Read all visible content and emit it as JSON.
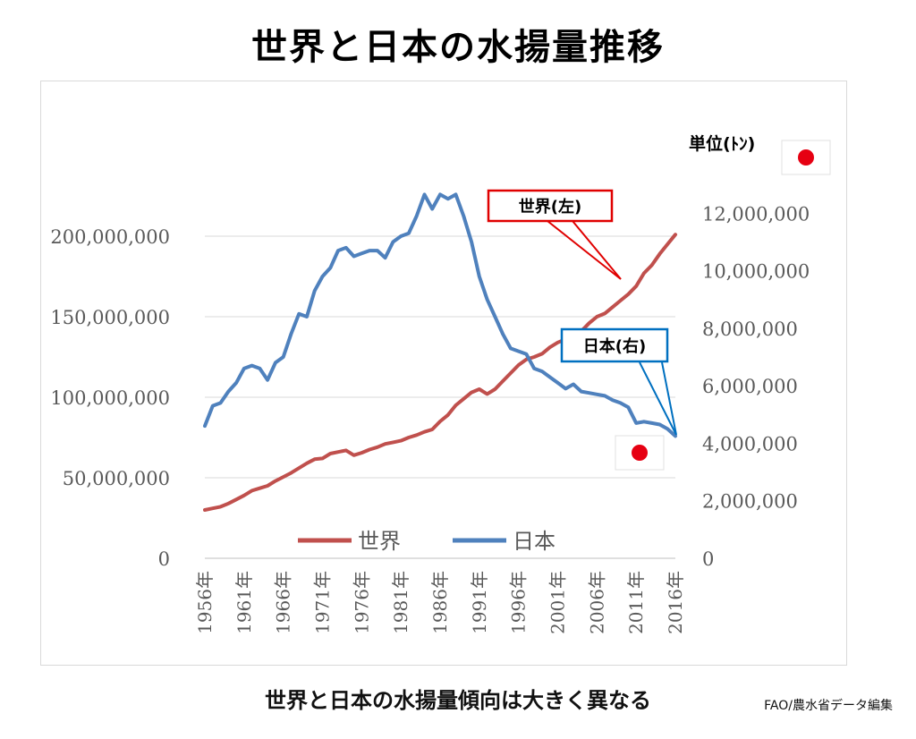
{
  "title": "世界と日本の水揚量推移",
  "caption": "世界と日本の水揚量傾向は大きく異なる",
  "source": "FAO/農水省データ編集",
  "unit_label": "単位(ﾄﾝ)",
  "callouts": {
    "world": "世界(左)",
    "japan": "日本(右)"
  },
  "colors": {
    "world": "#c0504d",
    "japan": "#4f81bd",
    "world_callout_border": "#e00000",
    "japan_callout_border": "#0070c0",
    "flag_red": "#e60012"
  },
  "chart_data": {
    "type": "line",
    "left_axis": {
      "range": [
        0,
        250000000
      ],
      "ticks": [
        0,
        50000000,
        100000000,
        150000000,
        200000000
      ],
      "tick_labels": [
        "0",
        "50,000,000",
        "100,000,000",
        "150,000,000",
        "200,000,000"
      ]
    },
    "right_axis": {
      "range": [
        0,
        14000000
      ],
      "ticks": [
        0,
        2000000,
        4000000,
        6000000,
        8000000,
        10000000,
        12000000
      ],
      "tick_labels": [
        "0",
        "2,000,000",
        "4,000,000",
        "6,000,000",
        "8,000,000",
        "10,000,000",
        "12,000,000"
      ]
    },
    "x_tick_labels": [
      "1956年",
      "1961年",
      "1966年",
      "1971年",
      "1976年",
      "1981年",
      "1986年",
      "1991年",
      "1996年",
      "2001年",
      "2006年",
      "2011年",
      "2016年"
    ],
    "x_ticks": [
      1956,
      1961,
      1966,
      1971,
      1976,
      1981,
      1986,
      1991,
      1996,
      2001,
      2006,
      2011,
      2016
    ],
    "x_range": [
      1956,
      2016
    ],
    "legend_position": "bottom",
    "grid": true,
    "series": [
      {
        "name": "世界",
        "axis": "left",
        "points": [
          [
            1956,
            30000000
          ],
          [
            1957,
            31000000
          ],
          [
            1958,
            32000000
          ],
          [
            1959,
            34000000
          ],
          [
            1960,
            36500000
          ],
          [
            1961,
            39000000
          ],
          [
            1962,
            42000000
          ],
          [
            1963,
            43500000
          ],
          [
            1964,
            45000000
          ],
          [
            1965,
            48000000
          ],
          [
            1966,
            50500000
          ],
          [
            1967,
            53000000
          ],
          [
            1968,
            56000000
          ],
          [
            1969,
            59000000
          ],
          [
            1970,
            61500000
          ],
          [
            1971,
            62000000
          ],
          [
            1972,
            65000000
          ],
          [
            1973,
            66000000
          ],
          [
            1974,
            67000000
          ],
          [
            1975,
            64000000
          ],
          [
            1976,
            65500000
          ],
          [
            1977,
            67500000
          ],
          [
            1978,
            69000000
          ],
          [
            1979,
            71000000
          ],
          [
            1980,
            72000000
          ],
          [
            1981,
            73000000
          ],
          [
            1982,
            75000000
          ],
          [
            1983,
            76500000
          ],
          [
            1984,
            78500000
          ],
          [
            1985,
            80000000
          ],
          [
            1986,
            85000000
          ],
          [
            1987,
            89000000
          ],
          [
            1988,
            95000000
          ],
          [
            1989,
            99000000
          ],
          [
            1990,
            103000000
          ],
          [
            1991,
            105000000
          ],
          [
            1992,
            102000000
          ],
          [
            1993,
            105000000
          ],
          [
            1994,
            110000000
          ],
          [
            1995,
            115000000
          ],
          [
            1996,
            120000000
          ],
          [
            1997,
            123500000
          ],
          [
            1998,
            125000000
          ],
          [
            1999,
            127000000
          ],
          [
            2000,
            131000000
          ],
          [
            2001,
            134000000
          ],
          [
            2002,
            136000000
          ],
          [
            2003,
            137500000
          ],
          [
            2004,
            141000000
          ],
          [
            2005,
            146000000
          ],
          [
            2006,
            150000000
          ],
          [
            2007,
            152000000
          ],
          [
            2008,
            156000000
          ],
          [
            2009,
            160000000
          ],
          [
            2010,
            164000000
          ],
          [
            2011,
            169000000
          ],
          [
            2012,
            177000000
          ],
          [
            2013,
            182000000
          ],
          [
            2014,
            189000000
          ],
          [
            2015,
            195000000
          ],
          [
            2016,
            201000000
          ]
        ]
      },
      {
        "name": "日本",
        "axis": "right",
        "points": [
          [
            1956,
            4600000
          ],
          [
            1957,
            5300000
          ],
          [
            1958,
            5400000
          ],
          [
            1959,
            5800000
          ],
          [
            1960,
            6100000
          ],
          [
            1961,
            6600000
          ],
          [
            1962,
            6700000
          ],
          [
            1963,
            6600000
          ],
          [
            1964,
            6200000
          ],
          [
            1965,
            6800000
          ],
          [
            1966,
            7000000
          ],
          [
            1967,
            7800000
          ],
          [
            1968,
            8500000
          ],
          [
            1969,
            8400000
          ],
          [
            1970,
            9300000
          ],
          [
            1971,
            9800000
          ],
          [
            1972,
            10100000
          ],
          [
            1973,
            10700000
          ],
          [
            1974,
            10800000
          ],
          [
            1975,
            10500000
          ],
          [
            1976,
            10600000
          ],
          [
            1977,
            10700000
          ],
          [
            1978,
            10700000
          ],
          [
            1979,
            10450000
          ],
          [
            1980,
            11000000
          ],
          [
            1981,
            11200000
          ],
          [
            1982,
            11300000
          ],
          [
            1983,
            11900000
          ],
          [
            1984,
            12650000
          ],
          [
            1985,
            12150000
          ],
          [
            1986,
            12650000
          ],
          [
            1987,
            12500000
          ],
          [
            1988,
            12650000
          ],
          [
            1989,
            11900000
          ],
          [
            1990,
            11000000
          ],
          [
            1991,
            9800000
          ],
          [
            1992,
            9000000
          ],
          [
            1993,
            8400000
          ],
          [
            1994,
            7800000
          ],
          [
            1995,
            7300000
          ],
          [
            1996,
            7200000
          ],
          [
            1997,
            7100000
          ],
          [
            1998,
            6600000
          ],
          [
            1999,
            6500000
          ],
          [
            2000,
            6300000
          ],
          [
            2001,
            6100000
          ],
          [
            2002,
            5900000
          ],
          [
            2003,
            6050000
          ],
          [
            2004,
            5800000
          ],
          [
            2005,
            5750000
          ],
          [
            2006,
            5700000
          ],
          [
            2007,
            5650000
          ],
          [
            2008,
            5500000
          ],
          [
            2009,
            5400000
          ],
          [
            2010,
            5250000
          ],
          [
            2011,
            4700000
          ],
          [
            2012,
            4750000
          ],
          [
            2013,
            4700000
          ],
          [
            2014,
            4650000
          ],
          [
            2015,
            4500000
          ],
          [
            2016,
            4250000
          ]
        ]
      }
    ]
  }
}
